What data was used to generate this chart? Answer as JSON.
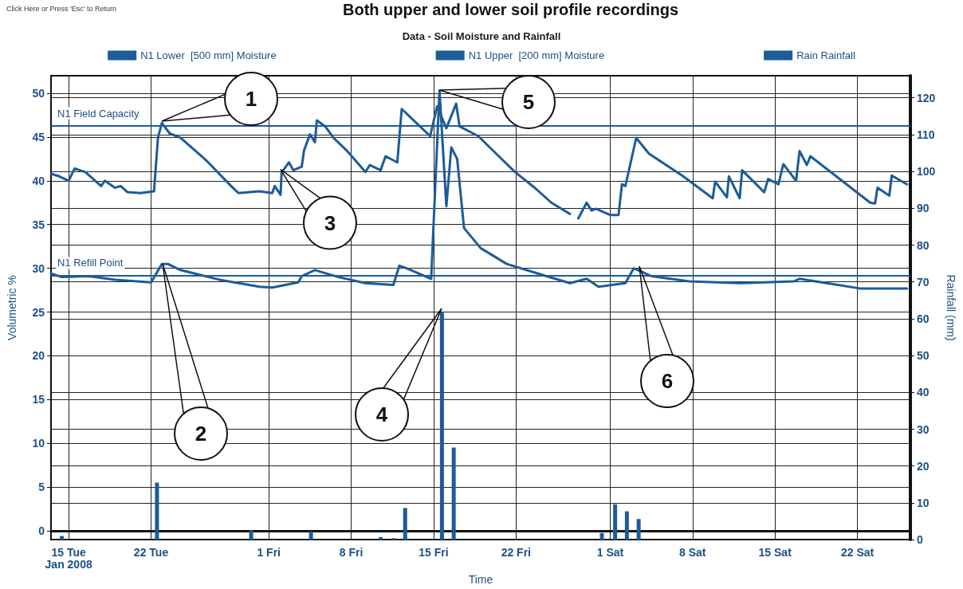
{
  "chart_data": {
    "type": "line",
    "title": "Data - Soil Moisture and Rainfall",
    "xlabel": "Time",
    "ylabel": "Volumetric %",
    "y2label": "Rainfall (mm)",
    "xlim": [
      "2008-01-13T12:00",
      "2008-03-26T12:00"
    ],
    "xticks": [
      {
        "value": "2008-01-15",
        "label": "15 Tue\nJan 2008"
      },
      {
        "value": "2008-01-22",
        "label": "22 Tue"
      },
      {
        "value": "2008-02-01",
        "label": "1 Fri"
      },
      {
        "value": "2008-02-08",
        "label": "8 Fri"
      },
      {
        "value": "2008-02-15",
        "label": "15 Fri"
      },
      {
        "value": "2008-02-22",
        "label": "22 Fri"
      },
      {
        "value": "2008-03-01",
        "label": "1 Sat"
      },
      {
        "value": "2008-03-08",
        "label": "8 Sat"
      },
      {
        "value": "2008-03-15",
        "label": "15 Sat"
      },
      {
        "value": "2008-03-22",
        "label": "22 Sat"
      }
    ],
    "ylim": [
      -1,
      52
    ],
    "yticks": [
      0,
      5,
      10,
      15,
      20,
      25,
      30,
      35,
      40,
      45,
      50
    ],
    "y2lim": [
      0,
      126
    ],
    "y2ticks": [
      0,
      10,
      20,
      30,
      40,
      50,
      60,
      70,
      80,
      90,
      100,
      110,
      120
    ],
    "grid": true,
    "legend": "top",
    "marker": "none",
    "line_style": "solid",
    "series": [
      {
        "name": "N1 Lower  [500 mm] Moisture",
        "color": "#1c5c99",
        "x": [
          "2008-01-13T12:00",
          "2008-01-14T10:00",
          "2008-01-16T17:00",
          "2008-01-18T22:00",
          "2008-01-22T00:00",
          "2008-01-22T22:00",
          "2008-01-23T10:00",
          "2008-01-24T12:00",
          "2008-01-27T19:00",
          "2008-01-31T05:00",
          "2008-02-01T07:00",
          "2008-02-03T12:00",
          "2008-02-03T19:00",
          "2008-02-04T22:00",
          "2008-02-06T22:00",
          "2008-02-09T05:00",
          "2008-02-11T14:00",
          "2008-02-12T02:00",
          "2008-02-12T17:00",
          "2008-02-14T19:00",
          "2008-02-15T12:00",
          "2008-02-16T02:00",
          "2008-02-16T12:00",
          "2008-02-17T00:00",
          "2008-02-17T14:00",
          "2008-02-19T00:00",
          "2008-02-21T05:00",
          "2008-02-24T14:00",
          "2008-02-26T14:00",
          "2008-02-28T00:00",
          "2008-02-29T00:00",
          "2008-03-02T07:00",
          "2008-03-03T00:00",
          "2008-03-03T17:00",
          "2008-03-04T12:00",
          "2008-03-07T17:00",
          "2008-03-12T02:00",
          "2008-03-16T14:00",
          "2008-03-17T02:00",
          "2008-03-22T05:00",
          "2008-03-26T05:00"
        ],
        "values": [
          29.4,
          29.0,
          29.1,
          28.7,
          28.4,
          30.5,
          30.5,
          29.8,
          28.7,
          27.9,
          27.8,
          28.4,
          29.1,
          29.8,
          29.0,
          28.3,
          28.1,
          30.3,
          30.0,
          28.8,
          50.3,
          37.1,
          43.8,
          42.5,
          34.6,
          32.3,
          30.5,
          29.1,
          28.3,
          28.8,
          27.9,
          28.3,
          30.0,
          29.6,
          29.1,
          28.5,
          28.3,
          28.5,
          28.8,
          27.7,
          27.7
        ]
      },
      {
        "name": "N1 Upper  [200 mm] Moisture",
        "color": "#1c5c99",
        "x": [
          "2008-01-13T12:00",
          "2008-01-14T05:00",
          "2008-01-15T00:00",
          "2008-01-15T12:00",
          "2008-01-16T10:00",
          "2008-01-17T18:00",
          "2008-01-18T02:00",
          "2008-01-18T22:00",
          "2008-01-19T10:00",
          "2008-01-20T00:00",
          "2008-01-21T02:00",
          "2008-01-22T06:00",
          "2008-01-22T14:00",
          "2008-01-22T22:00",
          "2008-01-23T14:00",
          "2008-01-24T12:00",
          "2008-01-26T17:00",
          "2008-01-28T19:00",
          "2008-01-29T10:00",
          "2008-01-31T05:00",
          "2008-02-01T07:00",
          "2008-02-01T12:00",
          "2008-02-02T00:00",
          "2008-02-02T02:00",
          "2008-02-02T17:00",
          "2008-02-03T02:00",
          "2008-02-03T19:00",
          "2008-02-04T00:00",
          "2008-02-04T12:00",
          "2008-02-04T22:00",
          "2008-02-05T02:00",
          "2008-02-05T19:00",
          "2008-02-06T12:00",
          "2008-02-07T14:00",
          "2008-02-09T05:00",
          "2008-02-09T14:00",
          "2008-02-10T12:00",
          "2008-02-10T22:00",
          "2008-02-11T22:00",
          "2008-02-12T07:00",
          "2008-02-14T17:00",
          "2008-02-15T07:00",
          "2008-02-16T02:00",
          "2008-02-16T22:00",
          "2008-02-17T05:00",
          "2008-02-18T19:00",
          "2008-02-20T02:00",
          "2008-02-21T22:00",
          "2008-02-23T12:00",
          "2008-02-25T00:00",
          "2008-02-26T14:00",
          "2008-02-27T00:00",
          "2008-02-27T07:00",
          "2008-02-28T00:00",
          "2008-02-28T10:00",
          "2008-02-28T19:00",
          "2008-03-01T00:00",
          "2008-03-01T17:00",
          "2008-03-02T00:00",
          "2008-03-02T07:00",
          "2008-03-03T05:00",
          "2008-03-04T07:00",
          "2008-03-07T05:00",
          "2008-03-09T17:00",
          "2008-03-09T22:00",
          "2008-03-10T22:00",
          "2008-03-11T02:00",
          "2008-03-12T00:00",
          "2008-03-12T05:00",
          "2008-03-14T02:00",
          "2008-03-14T10:00",
          "2008-03-15T07:00",
          "2008-03-15T17:00",
          "2008-03-16T19:00",
          "2008-03-17T02:00",
          "2008-03-17T17:00",
          "2008-03-18T00:00",
          "2008-03-23T02:00",
          "2008-03-23T12:00",
          "2008-03-23T17:00",
          "2008-03-24T17:00",
          "2008-03-24T22:00",
          "2008-03-26T05:00"
        ],
        "values": [
          40.8,
          40.5,
          40.0,
          41.4,
          41.0,
          39.4,
          40.0,
          39.2,
          39.4,
          38.7,
          38.6,
          38.8,
          44.9,
          46.6,
          45.4,
          44.9,
          42.3,
          39.4,
          38.6,
          38.8,
          38.6,
          39.4,
          38.4,
          40.9,
          42.1,
          41.2,
          41.6,
          43.5,
          45.3,
          44.4,
          46.9,
          46.2,
          44.9,
          43.5,
          41.0,
          41.8,
          41.2,
          42.8,
          42.1,
          48.2,
          45.1,
          48.5,
          46.0,
          48.8,
          46.2,
          45.1,
          43.4,
          41.0,
          39.3,
          37.5,
          36.2,
          null,
          35.7,
          37.5,
          36.6,
          36.8,
          36.1,
          36.1,
          39.6,
          39.4,
          44.9,
          43.1,
          40.5,
          38.0,
          39.9,
          38.1,
          40.5,
          38.0,
          41.2,
          38.7,
          40.2,
          39.6,
          41.9,
          40.0,
          43.4,
          41.8,
          42.8,
          37.5,
          37.4,
          39.2,
          38.3,
          40.6,
          39.6
        ]
      },
      {
        "name": "Rain Rainfall",
        "color": "#1c5c99",
        "type": "bar",
        "axis": "y2",
        "x": [
          "2008-01-14T10:00",
          "2008-01-22T12:00",
          "2008-01-30T12:00",
          "2008-02-01T12:00",
          "2008-02-04T14:00",
          "2008-02-10T12:00",
          "2008-02-11T14:00",
          "2008-02-12T14:00",
          "2008-02-15T17:00",
          "2008-02-16T17:00",
          "2008-02-29T07:00",
          "2008-03-01T10:00",
          "2008-03-02T10:00",
          "2008-03-03T10:00"
        ],
        "values": [
          1.0,
          15.5,
          2.5,
          0.3,
          2.2,
          0.7,
          0.4,
          8.6,
          62,
          25,
          1.8,
          9.6,
          7.7,
          5.6
        ]
      }
    ],
    "ref_lines": [
      {
        "axis": "y",
        "value": 46.3,
        "label": "N1 Field Capacity",
        "color": "#1c5c99",
        "line_style": "solid"
      },
      {
        "axis": "y",
        "value": 29.2,
        "label": "N1 Refill Point",
        "color": "#1c5c99",
        "line_style": "solid"
      }
    ],
    "annotations": [
      "Click Here or Press 'Esc' to Return",
      "Both upper and lower soil profile recordings",
      "1",
      "2",
      {
        "text": "3",
        "x": "2008-02-02T00:00",
        "y": 41.3
      },
      "4",
      "5",
      "6"
    ]
  }
}
